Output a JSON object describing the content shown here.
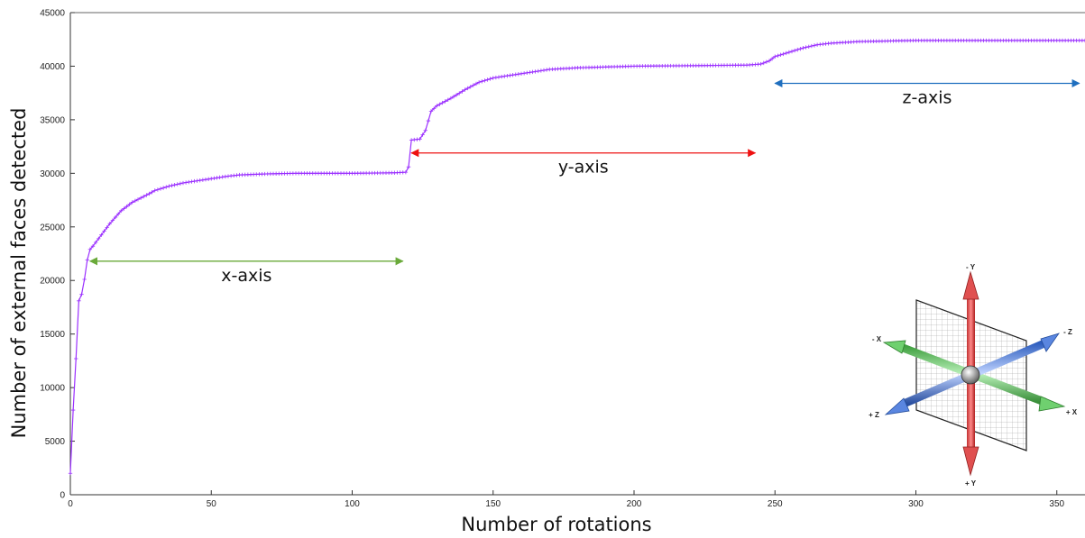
{
  "chart_data": {
    "type": "line",
    "title": "",
    "xlabel": "Number of rotations",
    "ylabel": "Number of external faces detected",
    "xlim": [
      0,
      360
    ],
    "ylim": [
      0,
      45000
    ],
    "x_ticks": [
      "0",
      "50",
      "100",
      "150",
      "200",
      "250",
      "300",
      "350"
    ],
    "y_ticks": [
      "0",
      "5000",
      "10000",
      "15000",
      "20000",
      "25000",
      "30000",
      "35000",
      "40000",
      "45000"
    ],
    "grid": false,
    "marker": "+",
    "series": [
      {
        "color": "#9b30ff",
        "points": [
          [
            0,
            2000
          ],
          [
            1,
            7900
          ],
          [
            2,
            12700
          ],
          [
            3,
            18100
          ],
          [
            4,
            18700
          ],
          [
            5,
            20100
          ],
          [
            6,
            21900
          ],
          [
            7,
            22900
          ],
          [
            8,
            23200
          ],
          [
            10,
            23900
          ],
          [
            12,
            24600
          ],
          [
            14,
            25300
          ],
          [
            16,
            25900
          ],
          [
            18,
            26500
          ],
          [
            20,
            26900
          ],
          [
            22,
            27300
          ],
          [
            25,
            27700
          ],
          [
            28,
            28100
          ],
          [
            30,
            28400
          ],
          [
            35,
            28800
          ],
          [
            40,
            29100
          ],
          [
            45,
            29300
          ],
          [
            50,
            29500
          ],
          [
            55,
            29700
          ],
          [
            60,
            29850
          ],
          [
            70,
            29950
          ],
          [
            80,
            30000
          ],
          [
            100,
            30000
          ],
          [
            115,
            30050
          ],
          [
            119,
            30100
          ],
          [
            120,
            30600
          ],
          [
            121,
            33100
          ],
          [
            124,
            33200
          ],
          [
            126,
            34000
          ],
          [
            128,
            35800
          ],
          [
            130,
            36300
          ],
          [
            135,
            37000
          ],
          [
            140,
            37800
          ],
          [
            145,
            38500
          ],
          [
            150,
            38900
          ],
          [
            160,
            39300
          ],
          [
            170,
            39700
          ],
          [
            180,
            39850
          ],
          [
            200,
            40000
          ],
          [
            220,
            40050
          ],
          [
            240,
            40100
          ],
          [
            245,
            40200
          ],
          [
            248,
            40500
          ],
          [
            250,
            40900
          ],
          [
            255,
            41300
          ],
          [
            260,
            41700
          ],
          [
            265,
            42000
          ],
          [
            270,
            42150
          ],
          [
            280,
            42300
          ],
          [
            300,
            42400
          ],
          [
            320,
            42400
          ],
          [
            340,
            42400
          ],
          [
            360,
            42400
          ]
        ]
      }
    ],
    "annotations": [
      {
        "label": "x-axis",
        "from": 7,
        "to": 118,
        "y": 21800,
        "color": "#6aaa3a"
      },
      {
        "label": "y-axis",
        "from": 121,
        "to": 243,
        "y": 31900,
        "color": "#ee1111"
      },
      {
        "label": "z-axis",
        "from": 250,
        "to": 358,
        "y": 38400,
        "color": "#1f6fbf"
      }
    ]
  },
  "inset": {
    "labels": {
      "neg_y": "- Y",
      "pos_y": "+ Y",
      "neg_x": "- X",
      "pos_x": "+ X",
      "neg_z": "- Z",
      "pos_z": "+ Z"
    }
  }
}
